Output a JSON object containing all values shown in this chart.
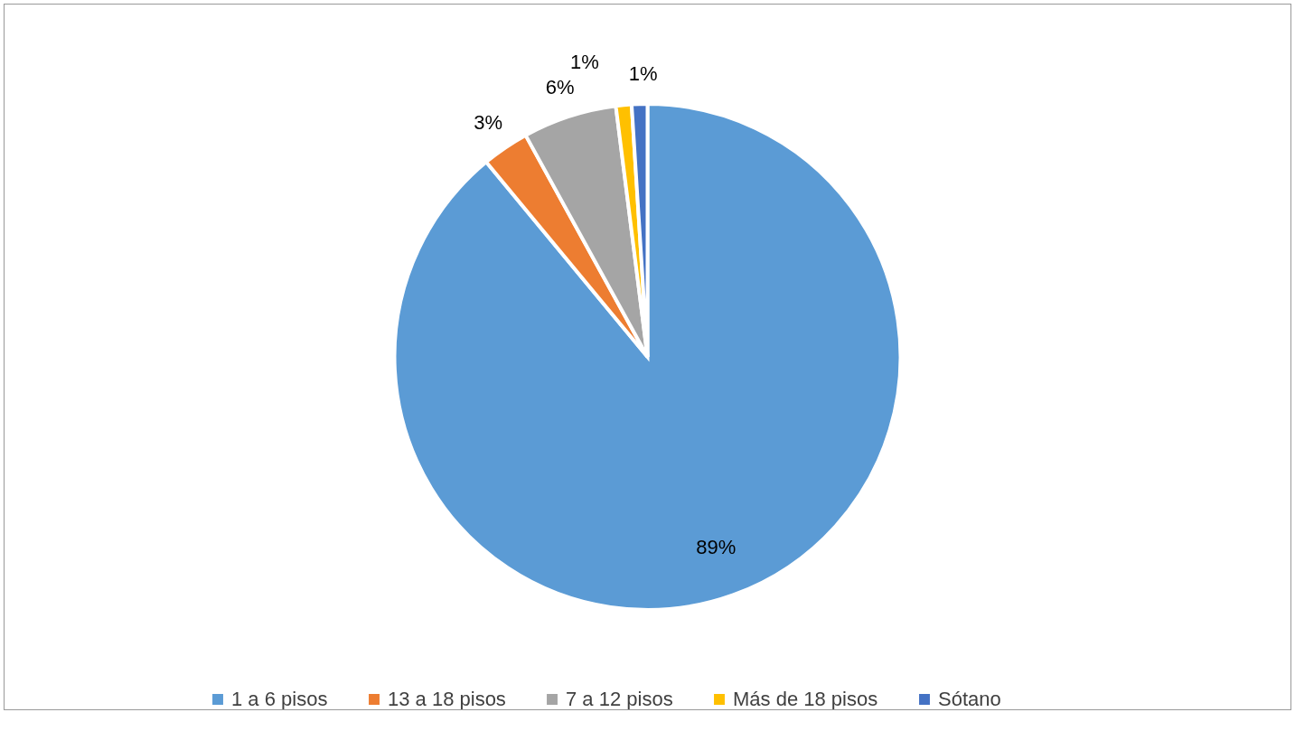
{
  "chart_data": {
    "type": "pie",
    "categories": [
      "1 a 6 pisos",
      "13 a 18 pisos",
      "7 a 12 pisos",
      "Más de 18 pisos",
      "Sótano"
    ],
    "values": [
      89,
      3,
      6,
      1,
      1
    ],
    "value_labels": [
      "89%",
      "3%",
      "6%",
      "1%",
      "1%"
    ],
    "colors": [
      "#5b9bd5",
      "#ed7d31",
      "#a5a5a5",
      "#ffc000",
      "#4472c4"
    ],
    "legend": "bottom"
  }
}
